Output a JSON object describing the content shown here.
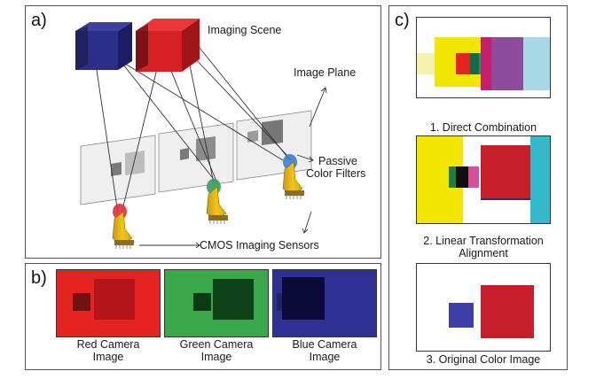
{
  "panels": {
    "a": {
      "label": "a)",
      "imaging_scene": "Imaging Scene",
      "image_plane": "Image Plane",
      "passive_filters_line1": "Passive",
      "passive_filters_line2": "Color Filters",
      "cmos_sensors": "CMOS Imaging Sensors"
    },
    "b": {
      "label": "b)",
      "cameras": [
        {
          "line1": "Red Camera",
          "line2": "Image",
          "color": "#e52320"
        },
        {
          "line1": "Green Camera",
          "line2": "Image",
          "color": "#3aa84a"
        },
        {
          "line1": "Blue Camera",
          "line2": "Image",
          "color": "#2e3192"
        }
      ]
    },
    "c": {
      "label": "c)",
      "items": [
        {
          "line1": "1.  Direct Combination",
          "line2": ""
        },
        {
          "line1": "2. Linear Transformation",
          "line2": "Alignment"
        },
        {
          "line1": "3. Original Color Image",
          "line2": ""
        }
      ]
    }
  },
  "colors": {
    "red": "#e52320",
    "dark_red": "#b3161a",
    "green": "#3aa84a",
    "blue": "#2e3192",
    "yellow": "#f2e500",
    "cyan": "#35b9cd",
    "magenta": "#d64f9a",
    "filter_red": "#e0313d",
    "filter_green": "#3d9b5e",
    "filter_blue": "#3c7ed0"
  }
}
